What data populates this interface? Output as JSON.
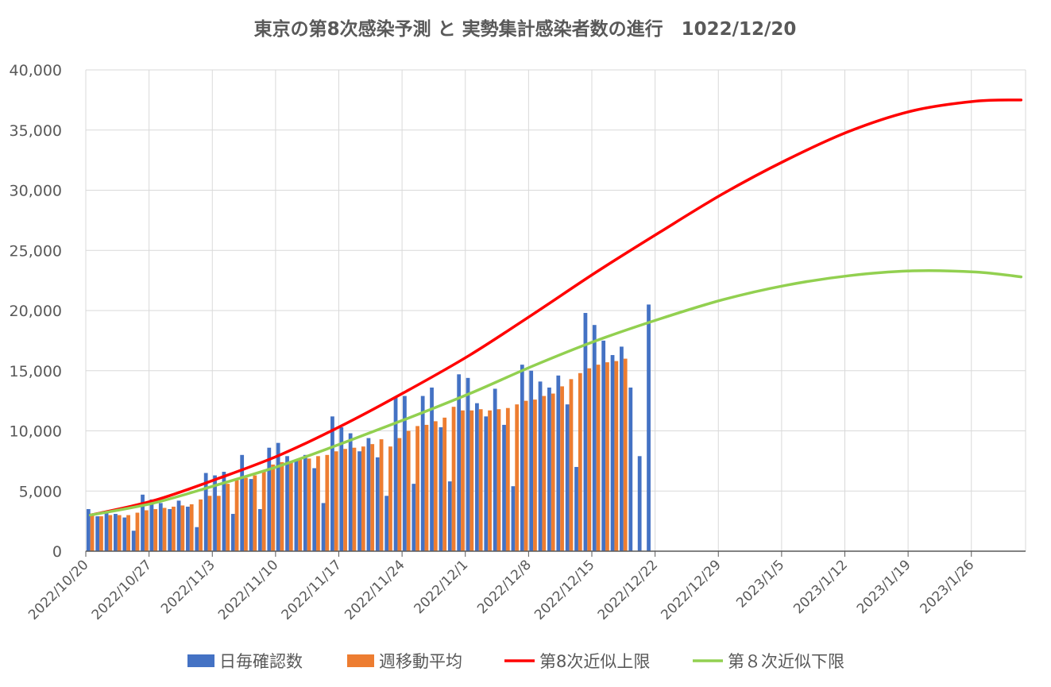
{
  "chart_data": {
    "type": "bar+line",
    "title": "東京の第8次感染予測 と 実勢集計感染者数の進行　1022/12/20",
    "xlabel": "",
    "ylabel": "",
    "ylim": [
      0,
      40000
    ],
    "y_ticks": [
      "0",
      "5,000",
      "10,000",
      "15,000",
      "20,000",
      "25,000",
      "30,000",
      "35,000",
      "40,000"
    ],
    "x_ticks": [
      "2022/10/20",
      "2022/10/27",
      "2022/11/3",
      "2022/11/10",
      "2022/11/17",
      "2022/11/24",
      "2022/12/1",
      "2022/12/8",
      "2022/12/15",
      "2022/12/22",
      "2022/12/29",
      "2023/1/5",
      "2023/1/12",
      "2023/1/19",
      "2023/1/26"
    ],
    "x_start": "2022/10/20",
    "x_end": "2023/1/31",
    "grid": true,
    "legend_position": "bottom",
    "series": [
      {
        "name": "日毎確認数",
        "type": "bar",
        "color": "#4472C4",
        "start": "2022/10/20",
        "values": [
          3500,
          2900,
          3200,
          3100,
          2800,
          1700,
          4700,
          4300,
          4000,
          3500,
          4200,
          3700,
          2000,
          6500,
          6300,
          6600,
          3100,
          8000,
          6000,
          3500,
          8600,
          9000,
          7900,
          7500,
          8000,
          6900,
          4000,
          11200,
          10300,
          9800,
          8300,
          9400,
          7800,
          4600,
          12800,
          12900,
          5600,
          12900,
          13600,
          10300,
          5800,
          14700,
          14400,
          12300,
          11200,
          13500,
          10500,
          5400,
          15500,
          15000,
          14100,
          13600,
          14600,
          12200,
          7000,
          19800,
          18800,
          17500,
          16300,
          17000,
          13600,
          7900,
          20500
        ]
      },
      {
        "name": "週移動平均",
        "type": "bar",
        "color": "#ED7D31",
        "start": "2022/10/20",
        "values": [
          3000,
          2900,
          3000,
          3000,
          3000,
          3200,
          3400,
          3500,
          3600,
          3700,
          3800,
          3900,
          4300,
          4600,
          4600,
          5600,
          5900,
          6100,
          6300,
          6700,
          7200,
          7400,
          7400,
          7700,
          7700,
          7900,
          8000,
          8300,
          8500,
          8600,
          8700,
          8900,
          9300,
          8700,
          9400,
          10000,
          10400,
          10500,
          10800,
          11100,
          12000,
          11700,
          11700,
          11800,
          11700,
          11800,
          11900,
          12200,
          12500,
          12600,
          12900,
          13100,
          13700,
          14300,
          14800,
          15200,
          15500,
          15700,
          15800,
          16000
        ]
      },
      {
        "name": "第8次近似上限",
        "type": "line",
        "color": "#FF0000",
        "points": [
          [
            "2022/10/20",
            3000
          ],
          [
            "2022/10/27",
            4200
          ],
          [
            "2022/11/3",
            6000
          ],
          [
            "2022/11/10",
            8000
          ],
          [
            "2022/11/17",
            10500
          ],
          [
            "2022/11/24",
            13300
          ],
          [
            "2022/12/1",
            16300
          ],
          [
            "2022/12/8",
            19700
          ],
          [
            "2022/12/15",
            23200
          ],
          [
            "2022/12/22",
            26500
          ],
          [
            "2022/12/29",
            29700
          ],
          [
            "2023/1/5",
            32500
          ],
          [
            "2023/1/12",
            34900
          ],
          [
            "2023/1/19",
            36600
          ],
          [
            "2023/1/26",
            37400
          ],
          [
            "2023/1/31",
            37500
          ]
        ]
      },
      {
        "name": "第８次近似下限",
        "type": "line",
        "color": "#92D050",
        "points": [
          [
            "2022/10/20",
            3000
          ],
          [
            "2022/10/27",
            4000
          ],
          [
            "2022/11/3",
            5500
          ],
          [
            "2022/11/10",
            7100
          ],
          [
            "2022/11/17",
            9000
          ],
          [
            "2022/11/24",
            11000
          ],
          [
            "2022/12/1",
            13100
          ],
          [
            "2022/12/8",
            15400
          ],
          [
            "2022/12/15",
            17500
          ],
          [
            "2022/12/22",
            19300
          ],
          [
            "2022/12/29",
            20900
          ],
          [
            "2023/1/5",
            22100
          ],
          [
            "2023/1/12",
            22900
          ],
          [
            "2023/1/19",
            23300
          ],
          [
            "2023/1/26",
            23200
          ],
          [
            "2023/1/31",
            22800
          ]
        ]
      }
    ]
  }
}
